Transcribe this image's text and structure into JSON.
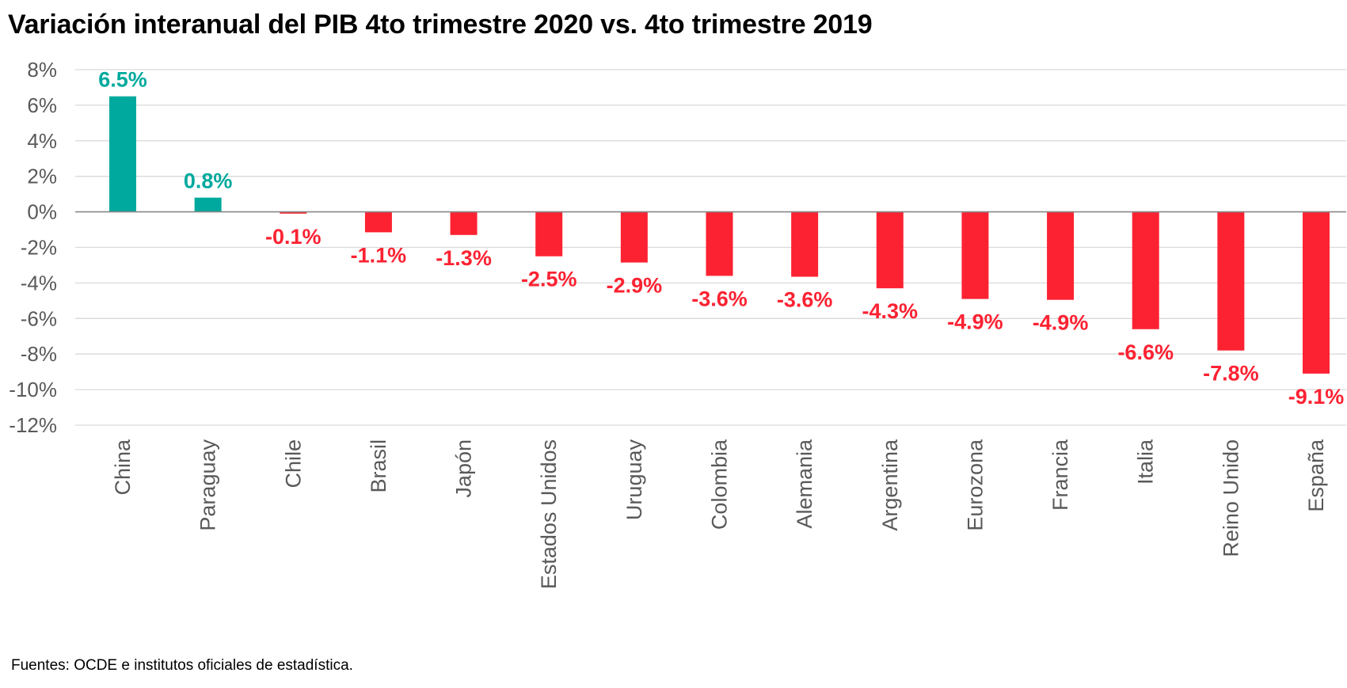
{
  "title": "Variación interanual del PIB 4to trimestre 2020 vs. 4to trimestre 2019",
  "source": "Fuentes: OCDE e institutos oficiales de estadística.",
  "colors": {
    "positive": "#00a99d",
    "negative": "#fc2232",
    "grid": "#d9d9d9",
    "axis": "#888888",
    "tick_text": "#595959"
  },
  "chart_data": {
    "type": "bar",
    "title": "Variación interanual del PIB 4to trimestre 2020 vs. 4to trimestre 2019",
    "xlabel": "",
    "ylabel": "",
    "ylim": [
      -12,
      8
    ],
    "yticks": [
      8,
      6,
      4,
      2,
      0,
      -2,
      -4,
      -6,
      -8,
      -10,
      -12
    ],
    "ytick_labels": [
      "8%",
      "6%",
      "4%",
      "2%",
      "0%",
      "-2%",
      "-4%",
      "-6%",
      "-8%",
      "-10%",
      "-12%"
    ],
    "grid": true,
    "legend": "none",
    "categories": [
      "China",
      "Paraguay",
      "Chile",
      "Brasil",
      "Japón",
      "Estados Unidos",
      "Uruguay",
      "Colombia",
      "Alemania",
      "Argentina",
      "Eurozona",
      "Francia",
      "Italia",
      "Reino Unido",
      "España"
    ],
    "values": [
      6.5,
      0.8,
      -0.1,
      -1.15,
      -1.3,
      -2.5,
      -2.85,
      -3.6,
      -3.65,
      -4.3,
      -4.9,
      -4.95,
      -6.6,
      -7.8,
      -9.1
    ],
    "data_labels": [
      "6.5%",
      "0.8%",
      "-0.1%",
      "-1.1%",
      "-1.3%",
      "-2.5%",
      "-2.9%",
      "-3.6%",
      "-3.6%",
      "-4.3%",
      "-4.9%",
      "-4.9%",
      "-6.6%",
      "-7.8%",
      "-9.1%"
    ]
  }
}
